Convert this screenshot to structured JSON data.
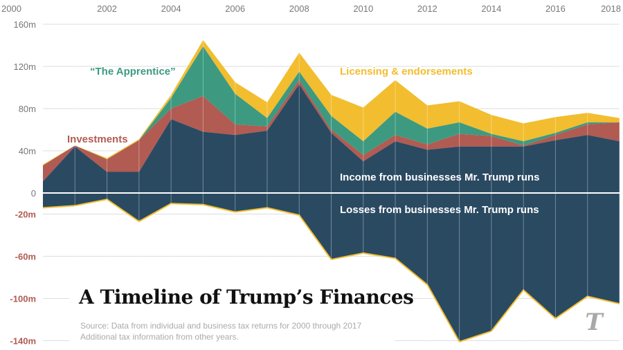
{
  "title": "A Timeline of Trump’s Finances",
  "source_lines": [
    "Source: Data from individual and business tax returns for 2000 through 2017",
    "Additional tax information from other years."
  ],
  "logo_glyph": "T",
  "colors": {
    "business_income": "#2a4a62",
    "investments": "#b15b52",
    "apprentice": "#3d9a80",
    "licensing": "#f2bd2f",
    "losses": "#2a4a62",
    "loss_edge": "#f2bd2f",
    "positive_ticks": "#777777",
    "negative_ticks": "#b15b52",
    "zero_line": "#ffffff"
  },
  "chart_data": {
    "type": "area",
    "title": "A Timeline of Trump’s Finances",
    "x": [
      2000,
      2001,
      2002,
      2003,
      2004,
      2005,
      2006,
      2007,
      2008,
      2009,
      2010,
      2011,
      2012,
      2013,
      2014,
      2015,
      2016,
      2017,
      2018
    ],
    "x_tick_labels": [
      "2000",
      "2002",
      "2004",
      "2006",
      "2008",
      "2010",
      "2012",
      "2014",
      "2016",
      "2018"
    ],
    "y_tick_labels_positive": [
      "160m",
      "120m",
      "80m",
      "40m",
      "0"
    ],
    "y_tick_labels_negative": [
      "-20m",
      "-60m",
      "-100m",
      "-140m"
    ],
    "ylim": [
      -145,
      163
    ],
    "units": "millions of dollars",
    "stacked_positive": [
      {
        "name": "Income from businesses Mr. Trump runs",
        "values": [
          11,
          44,
          20,
          20,
          70,
          58,
          55,
          59,
          103,
          57,
          30,
          49,
          41,
          44,
          44,
          44,
          50,
          55,
          49
        ]
      },
      {
        "name": "Investments",
        "values": [
          15,
          1,
          12,
          30,
          10,
          34,
          10,
          4,
          4,
          3,
          6,
          6,
          5,
          12,
          10,
          1,
          5,
          10,
          18
        ]
      },
      {
        "name": "“The Apprentice”",
        "values": [
          0,
          0,
          0,
          0,
          10,
          47,
          29,
          8,
          8,
          13,
          13,
          22,
          15,
          11,
          2,
          4,
          2,
          2,
          0
        ]
      },
      {
        "name": "Licensing & endorsements",
        "values": [
          1,
          0,
          1,
          1,
          3,
          6,
          11,
          15,
          18,
          20,
          32,
          30,
          22,
          20,
          18,
          17,
          15,
          9,
          4
        ]
      }
    ],
    "negative": [
      {
        "name": "Losses from businesses Mr. Trump runs",
        "values": [
          -14,
          -12,
          -6,
          -27,
          -10,
          -11,
          -18,
          -14,
          -21,
          -63,
          -57,
          -62,
          -87,
          -141,
          -131,
          -92,
          -119,
          -98,
          -105
        ]
      }
    ]
  }
}
